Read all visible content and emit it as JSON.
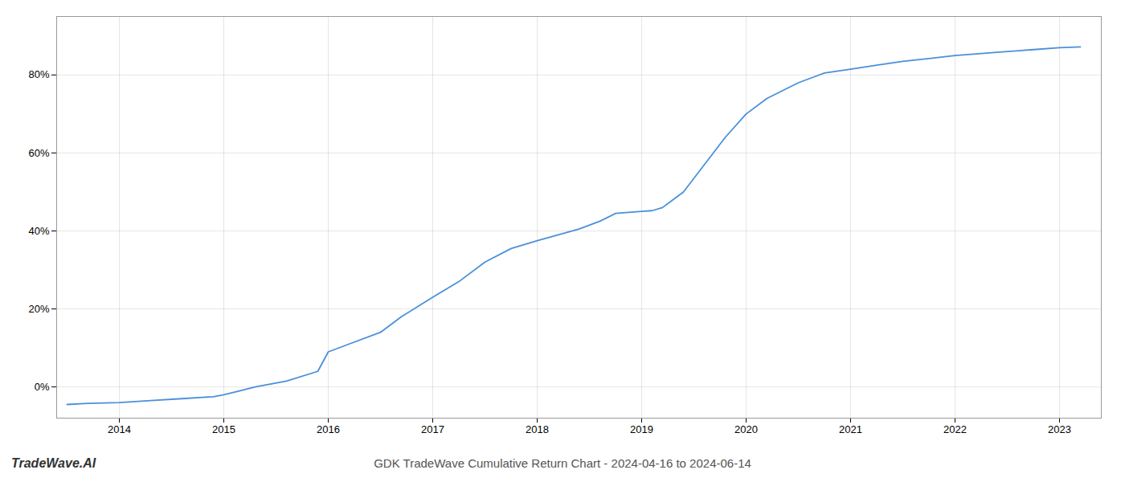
{
  "chart_data": {
    "type": "line",
    "title": "GDK TradeWave Cumulative Return Chart - 2024-04-16 to 2024-06-14",
    "annotations": [
      "TradeWave.AI"
    ],
    "x": [
      2013.5,
      2013.7,
      2014.0,
      2014.3,
      2014.6,
      2014.9,
      2015.0,
      2015.15,
      2015.3,
      2015.6,
      2015.9,
      2016.0,
      2016.2,
      2016.5,
      2016.7,
      2017.0,
      2017.25,
      2017.5,
      2017.75,
      2018.0,
      2018.2,
      2018.4,
      2018.6,
      2018.75,
      2019.0,
      2019.1,
      2019.2,
      2019.4,
      2019.6,
      2019.8,
      2020.0,
      2020.2,
      2020.5,
      2020.75,
      2021.0,
      2021.25,
      2021.5,
      2021.75,
      2022.0,
      2022.25,
      2022.5,
      2022.75,
      2023.0,
      2023.2
    ],
    "values": [
      -4.5,
      -4.2,
      -4.0,
      -3.5,
      -3.0,
      -2.5,
      -2.0,
      -1.0,
      0.0,
      1.5,
      4.0,
      9.0,
      11.0,
      14.0,
      18.0,
      23.0,
      27.0,
      32.0,
      35.5,
      37.5,
      39.0,
      40.5,
      42.5,
      44.5,
      45.0,
      45.2,
      46.0,
      50.0,
      57.0,
      64.0,
      70.0,
      74.0,
      78.0,
      80.5,
      81.5,
      82.5,
      83.5,
      84.2,
      85.0,
      85.5,
      86.0,
      86.5,
      87.0,
      87.2
    ],
    "color": "#4a90d9",
    "xlim": [
      2013.4,
      2023.4
    ],
    "xticks": [
      2014,
      2015,
      2016,
      2017,
      2018,
      2019,
      2020,
      2021,
      2022,
      2023
    ],
    "ylim": [
      -8,
      95
    ],
    "yticks": [
      {
        "value": 0,
        "label": "0%"
      },
      {
        "value": 20,
        "label": "20%"
      },
      {
        "value": 40,
        "label": "40%"
      },
      {
        "value": 60,
        "label": "60%"
      },
      {
        "value": 80,
        "label": "80%"
      }
    ],
    "grid": true
  }
}
